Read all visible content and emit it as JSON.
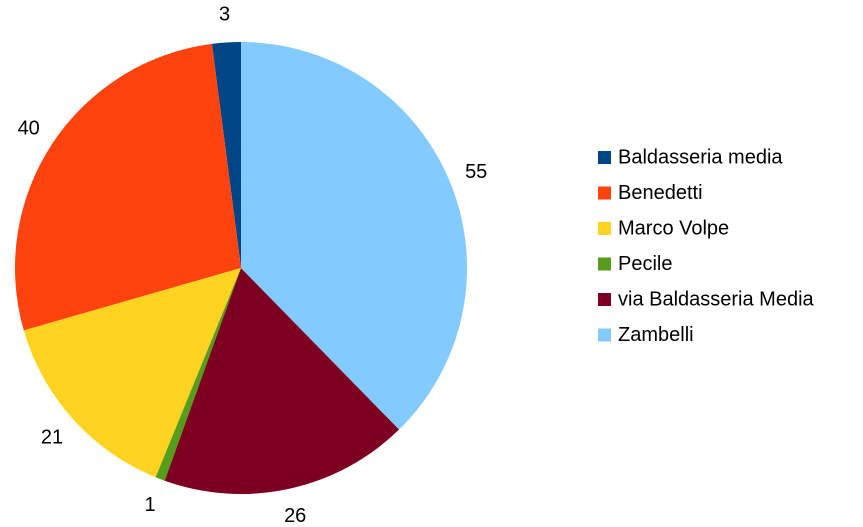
{
  "chart_data": {
    "type": "pie",
    "title": "",
    "categories": [
      "Baldasseria media",
      "Benedetti",
      "Marco Volpe",
      "Pecile",
      "via Baldasseria Media",
      "Zambelli"
    ],
    "values": [
      3,
      40,
      21,
      1,
      26,
      55
    ],
    "data_labels": [
      "3",
      "40",
      "21",
      "1",
      "26",
      "55"
    ],
    "colors": [
      "#004586",
      "#ff420e",
      "#ffd320",
      "#579d1c",
      "#7e0021",
      "#83caff"
    ],
    "start_angle_deg": 0,
    "direction": "counterclockwise",
    "legend": {
      "position": "right",
      "entries": [
        "Baldasseria media",
        "Benedetti",
        "Marco Volpe",
        "Pecile",
        "via Baldasseria Media",
        "Zambelli"
      ]
    }
  }
}
